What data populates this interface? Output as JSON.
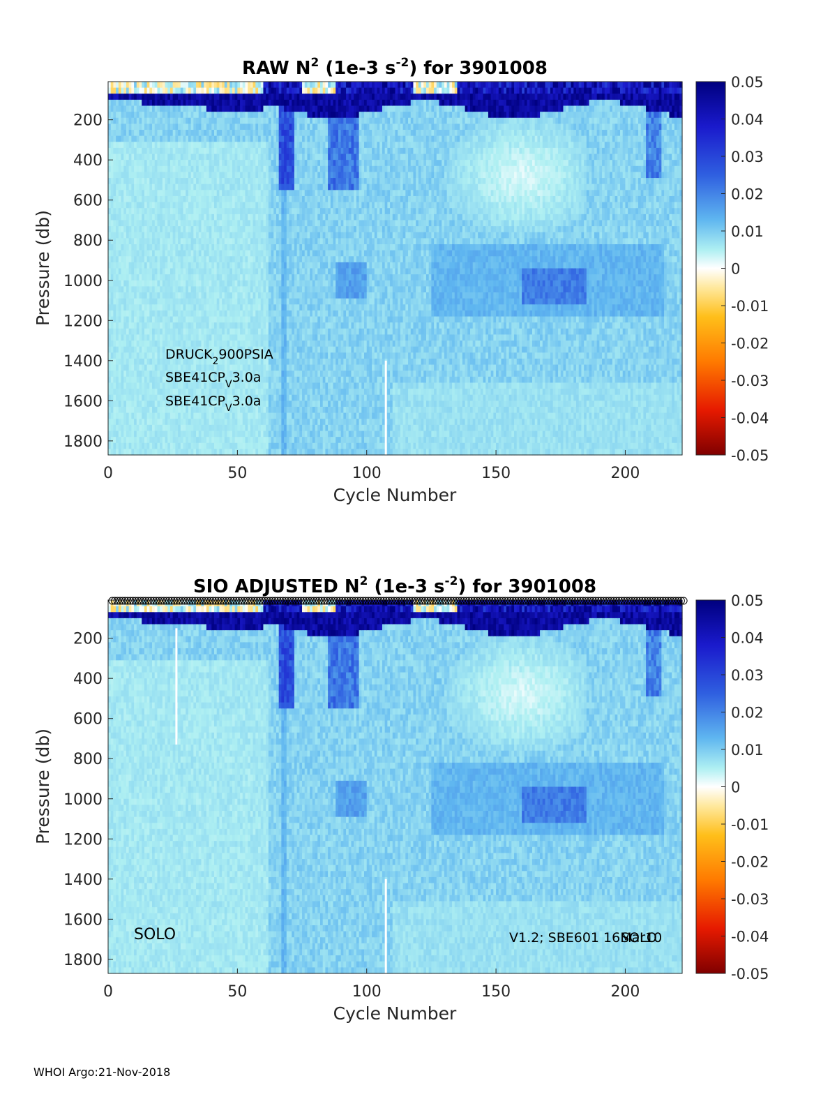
{
  "chart_data": [
    {
      "type": "heatmap",
      "title_parts": [
        "RAW N",
        "2",
        " (1e-3 s",
        "-2",
        ") for 3901008"
      ],
      "xlabel": "Cycle Number",
      "ylabel": "Pressure (db)",
      "xlim": [
        0,
        222
      ],
      "ylim": [
        1870,
        10
      ],
      "y_reversed": true,
      "x_ticks": [
        "0",
        "50",
        "100",
        "150",
        "200"
      ],
      "y_ticks": [
        "200",
        "400",
        "600",
        "800",
        "1000",
        "1200",
        "1400",
        "1600",
        "1800"
      ],
      "colorbar": {
        "range": [
          -0.05,
          0.05
        ],
        "ticks": [
          "0.05",
          "0.04",
          "0.03",
          "0.02",
          "0.01",
          "0",
          "-0.01",
          "-0.02",
          "-0.03",
          "-0.04",
          "-0.05"
        ],
        "colormap": "jet-like diverging (dark blue high, pale yellow near 0, dark red low)"
      },
      "annotations": [
        {
          "parts": [
            "DRUCK",
            "2",
            "900PSIA"
          ]
        },
        {
          "parts": [
            "SBE41CP",
            "V",
            "3.0a"
          ]
        },
        {
          "parts": [
            "SBE41CP",
            "V",
            "3.0a"
          ]
        }
      ],
      "approx_value_regions": [
        {
          "desc": "surface layer strongly positive",
          "pressure": [
            10,
            190
          ],
          "value": 0.045
        },
        {
          "desc": "deep water weakly positive",
          "pressure": [
            200,
            1870
          ],
          "value": 0.01
        },
        {
          "desc": "strong tongue near cycles 67-72",
          "cycle": [
            67,
            72
          ],
          "pressure": [
            200,
            550
          ],
          "value": 0.03
        },
        {
          "desc": "weak-stratification patch cycles 130-185",
          "cycle": [
            130,
            185
          ],
          "pressure": [
            200,
            750
          ],
          "value": 0.001
        },
        {
          "desc": "enhanced band cycles 160-185",
          "cycle": [
            160,
            185
          ],
          "pressure": [
            900,
            1150
          ],
          "value": 0.022
        }
      ]
    },
    {
      "type": "heatmap",
      "title_parts": [
        "SIO  ADJUSTED N",
        "2",
        " (1e-3 s",
        "-2",
        ") for 3901008"
      ],
      "xlabel": "Cycle Number",
      "ylabel": "Pressure (db)",
      "xlim": [
        0,
        222
      ],
      "ylim": [
        1870,
        10
      ],
      "y_reversed": true,
      "x_ticks": [
        "0",
        "50",
        "100",
        "150",
        "200"
      ],
      "y_ticks": [
        "200",
        "400",
        "600",
        "800",
        "1000",
        "1200",
        "1400",
        "1600",
        "1800"
      ],
      "colorbar": {
        "range": [
          -0.05,
          0.05
        ],
        "ticks": [
          "0.05",
          "0.04",
          "0.03",
          "0.02",
          "0.01",
          "0",
          "-0.01",
          "-0.02",
          "-0.03",
          "-0.04",
          "-0.05"
        ]
      },
      "marker_row": {
        "symbol": "o",
        "pressure": 10,
        "cycles": "1-222"
      },
      "annotations_left": "SOLO",
      "annotation_right_a": "V1.2; SBE601 16Mar10",
      "annotation_right_b": "SOLO",
      "approx_value_regions": [
        {
          "desc": "surface layer strongly positive",
          "pressure": [
            10,
            190
          ],
          "value": 0.045
        },
        {
          "desc": "deep water weakly positive",
          "pressure": [
            200,
            1870
          ],
          "value": 0.01
        },
        {
          "desc": "gap at cycle 26",
          "cycle": [
            26,
            26
          ],
          "pressure": [
            150,
            730
          ],
          "value": null
        },
        {
          "desc": "gap at cycle 107",
          "cycle": [
            107,
            107
          ],
          "pressure": [
            1400,
            1870
          ],
          "value": null
        }
      ]
    }
  ],
  "footer": "WHOI Argo:21-Nov-2018"
}
